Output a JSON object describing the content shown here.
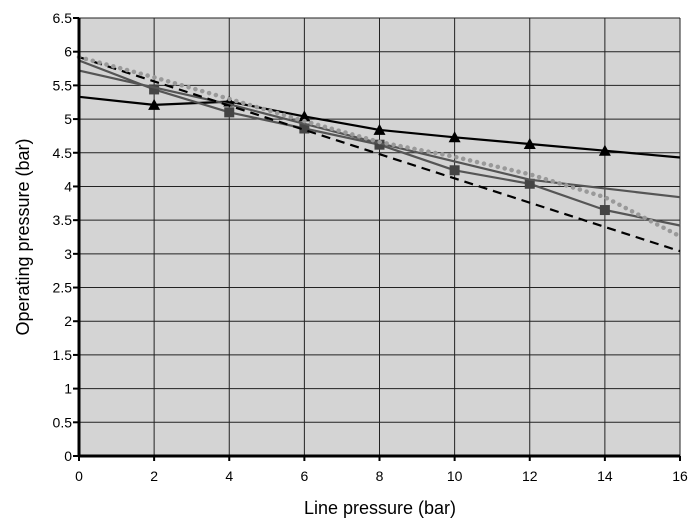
{
  "chart_data": {
    "type": "line",
    "title": "",
    "xlabel": "Line pressure (bar)",
    "ylabel": "Operating pressure (bar)",
    "xlim": [
      0,
      16
    ],
    "ylim": [
      0,
      6.5
    ],
    "grid": true,
    "x_ticks": [
      0,
      2,
      4,
      6,
      8,
      10,
      12,
      14,
      16
    ],
    "y_ticks": [
      0,
      0.5,
      1,
      1.5,
      2,
      2.5,
      3,
      3.5,
      4,
      4.5,
      5,
      5.5,
      6,
      6.5
    ],
    "x_tick_labels": [
      "0",
      "2",
      "4",
      "6",
      "8",
      "10",
      "12",
      "14",
      "16"
    ],
    "y_tick_labels": [
      "0",
      "0.5",
      "1",
      "1.5",
      "2",
      "2.5",
      "3",
      "3.5",
      "4",
      "4.5",
      "5",
      "5.5",
      "6",
      "6.5"
    ],
    "series": [
      {
        "style": "solid",
        "color": "#000000",
        "marker": "triangle",
        "x": [
          0,
          2,
          4,
          6,
          8,
          10,
          12,
          14,
          16
        ],
        "y": [
          5.33,
          5.21,
          5.26,
          5.04,
          4.84,
          4.73,
          4.63,
          4.53,
          4.43
        ],
        "marker_x": [
          2,
          4,
          6,
          8,
          10,
          12,
          14
        ]
      },
      {
        "style": "solid",
        "color": "#555555",
        "marker": "square",
        "x": [
          0,
          2,
          4,
          6,
          8,
          10,
          12,
          14,
          16
        ],
        "y": [
          5.87,
          5.44,
          5.1,
          4.86,
          4.62,
          4.24,
          4.04,
          3.65,
          3.42
        ],
        "marker_x": [
          2,
          4,
          6,
          8,
          10,
          12,
          14
        ]
      },
      {
        "style": "solid",
        "color": "#555555",
        "marker": "none",
        "x": [
          0,
          4,
          8,
          12,
          16
        ],
        "y": [
          5.72,
          5.22,
          4.64,
          4.1,
          3.84
        ]
      },
      {
        "style": "dashed",
        "color": "#000000",
        "marker": "none",
        "x": [
          0,
          16
        ],
        "y": [
          5.92,
          3.04
        ]
      },
      {
        "style": "dotted",
        "color": "#999999",
        "marker": "none",
        "x": [
          0,
          2,
          4,
          6,
          8,
          10,
          12,
          14,
          16
        ],
        "y": [
          5.92,
          5.62,
          5.3,
          4.97,
          4.66,
          4.44,
          4.18,
          3.84,
          3.26
        ]
      }
    ]
  }
}
